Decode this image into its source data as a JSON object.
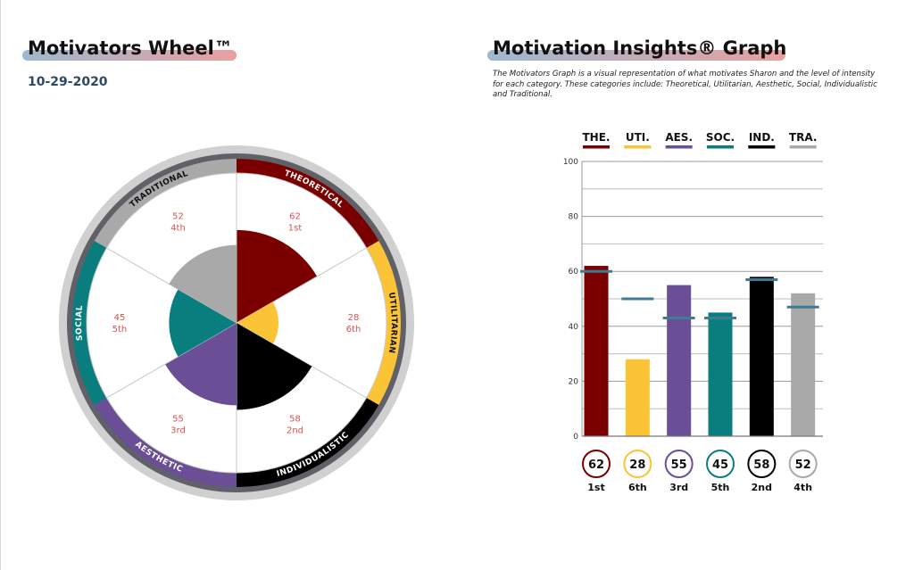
{
  "wheel": {
    "title": "Motivators Wheel™",
    "date": "10-29-2020"
  },
  "graph": {
    "title": "Motivation Insights® Graph",
    "description": "The Motivators Graph is a visual representation of what motivates Sharon and the level of intensity for each category.  These categories include: Theoretical, Utilitarian, Aesthetic, Social, Individualistic and Traditional."
  },
  "chart_data": [
    {
      "type": "pie",
      "title": "",
      "categories": [
        "Theoretical",
        "Utilitarian",
        "Individualistic",
        "Aesthetic",
        "Social",
        "Traditional"
      ],
      "labels": [
        "THEORETICAL",
        "UTILITARIAN",
        "INDIVIDUALISTIC",
        "AESTHETIC",
        "SOCIAL",
        "TRADITIONAL"
      ],
      "values": [
        62,
        28,
        58,
        55,
        45,
        52
      ],
      "ranks": [
        "1st",
        "6th",
        "2nd",
        "3rd",
        "5th",
        "4th"
      ],
      "colors": [
        "#7a0000",
        "#fbc437",
        "#000000",
        "#6a4f97",
        "#0a7e7e",
        "#a9a9a9"
      ],
      "ylim": [
        0,
        100
      ]
    },
    {
      "type": "bar",
      "title": "",
      "categories": [
        "THE.",
        "UTI.",
        "AES.",
        "SOC.",
        "IND.",
        "TRA."
      ],
      "values": [
        62,
        28,
        55,
        45,
        58,
        52
      ],
      "reference_values": [
        60,
        50,
        43,
        43,
        57,
        47
      ],
      "ranks": [
        "1st",
        "6th",
        "3rd",
        "5th",
        "2nd",
        "4th"
      ],
      "colors": [
        "#7a0000",
        "#fbc437",
        "#6a4f97",
        "#0a7e7e",
        "#000000",
        "#a9a9a9"
      ],
      "ylim": [
        0,
        100
      ],
      "yticks": [
        0,
        20,
        40,
        60,
        80,
        100
      ],
      "grid": true
    }
  ]
}
